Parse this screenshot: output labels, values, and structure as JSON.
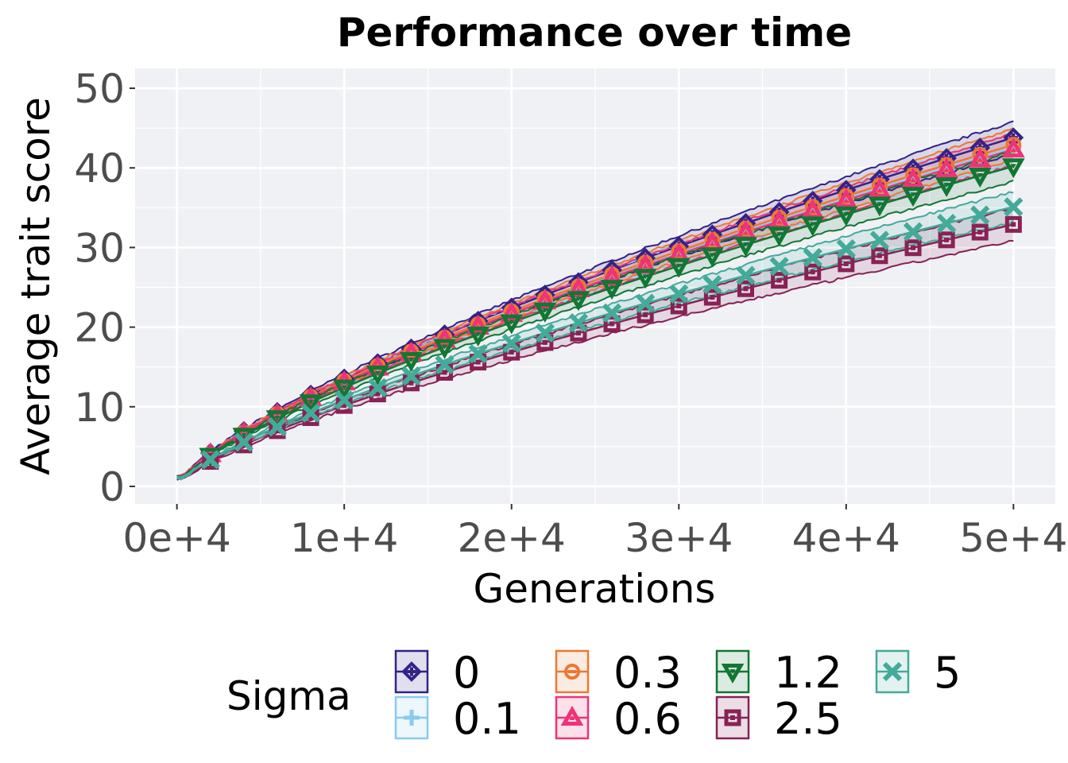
{
  "chart_data": {
    "type": "line",
    "title": "Performance over time",
    "xlabel": "Generations",
    "ylabel": "Average trait score",
    "xlim": [
      -2500,
      52500
    ],
    "ylim": [
      -2.2,
      52.5
    ],
    "x_ticks": [
      0,
      10000,
      20000,
      30000,
      40000,
      50000
    ],
    "x_tick_labels": [
      "0e+4",
      "1e+4",
      "2e+4",
      "3e+4",
      "4e+4",
      "5e+4"
    ],
    "y_ticks": [
      0,
      10,
      20,
      30,
      40,
      50
    ],
    "y_tick_labels": [
      "0",
      "10",
      "20",
      "30",
      "40",
      "50"
    ],
    "grid": true,
    "panel_background": "#f0f1f5",
    "legend": {
      "title": "Sigma",
      "position": "bottom",
      "columns": 4
    },
    "series": [
      {
        "name": "0",
        "color": "#332288",
        "marker": "diamond-plus",
        "final": 43.8,
        "band": 2.0
      },
      {
        "name": "0.1",
        "color": "#88ccee",
        "marker": "plus",
        "final": 42.5,
        "band": 1.8
      },
      {
        "name": "0.3",
        "color": "#ee7733",
        "marker": "circle-cross",
        "final": 42.9,
        "band": 2.0
      },
      {
        "name": "0.6",
        "color": "#ee3377",
        "marker": "triangle",
        "final": 42.3,
        "band": 2.0
      },
      {
        "name": "1.2",
        "color": "#117733",
        "marker": "triangle-down",
        "final": 40.2,
        "band": 1.9
      },
      {
        "name": "2.5",
        "color": "#882255",
        "marker": "square-cross",
        "final": 32.9,
        "band": 2.1
      },
      {
        "name": "5",
        "color": "#44aa99",
        "marker": "x",
        "final": 35.1,
        "band": 1.9
      }
    ],
    "marker_x": [
      2000,
      4000,
      6000,
      8000,
      10000,
      12000,
      14000,
      16000,
      18000,
      20000,
      22000,
      24000,
      26000,
      28000,
      30000,
      32000,
      34000,
      36000,
      38000,
      40000,
      42000,
      44000,
      46000,
      48000,
      50000
    ]
  }
}
